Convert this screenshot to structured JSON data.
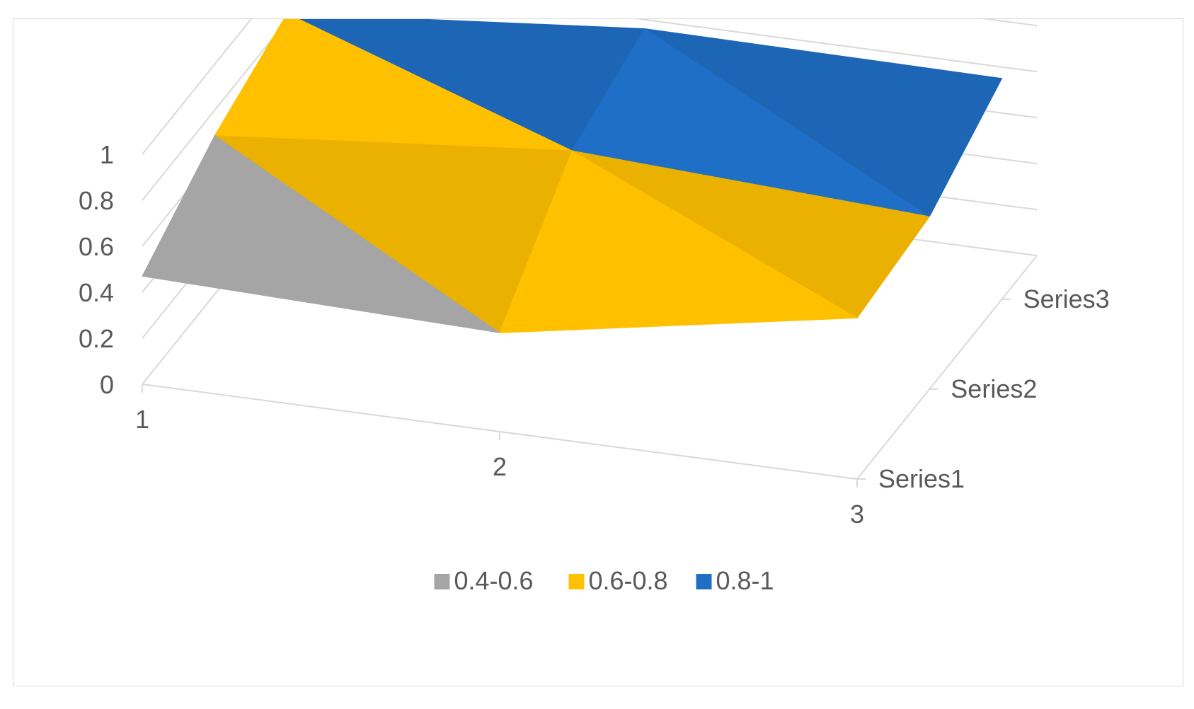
{
  "chart_data": {
    "type": "surface",
    "title": "",
    "x_categories": [
      "1",
      "2",
      "3"
    ],
    "series": [
      {
        "name": "Series1",
        "values": [
          0.47,
          0.43,
          0.7
        ]
      },
      {
        "name": "Series2",
        "values": [
          0.69,
          0.83,
          0.75
        ]
      },
      {
        "name": "Series3",
        "values": [
          0.83,
          0.97,
          0.96
        ]
      }
    ],
    "zlim": [
      0,
      1
    ],
    "z_ticks": [
      "0",
      "0.2",
      "0.4",
      "0.6",
      "0.8",
      "1"
    ],
    "legend": {
      "position": "bottom",
      "items": [
        {
          "label": "0.4-0.6",
          "color": "#a5a5a5"
        },
        {
          "label": "0.6-0.8",
          "color": "#ffc000"
        },
        {
          "label": "0.8-1",
          "color": "#1f6fc6"
        }
      ]
    },
    "grid": true
  }
}
